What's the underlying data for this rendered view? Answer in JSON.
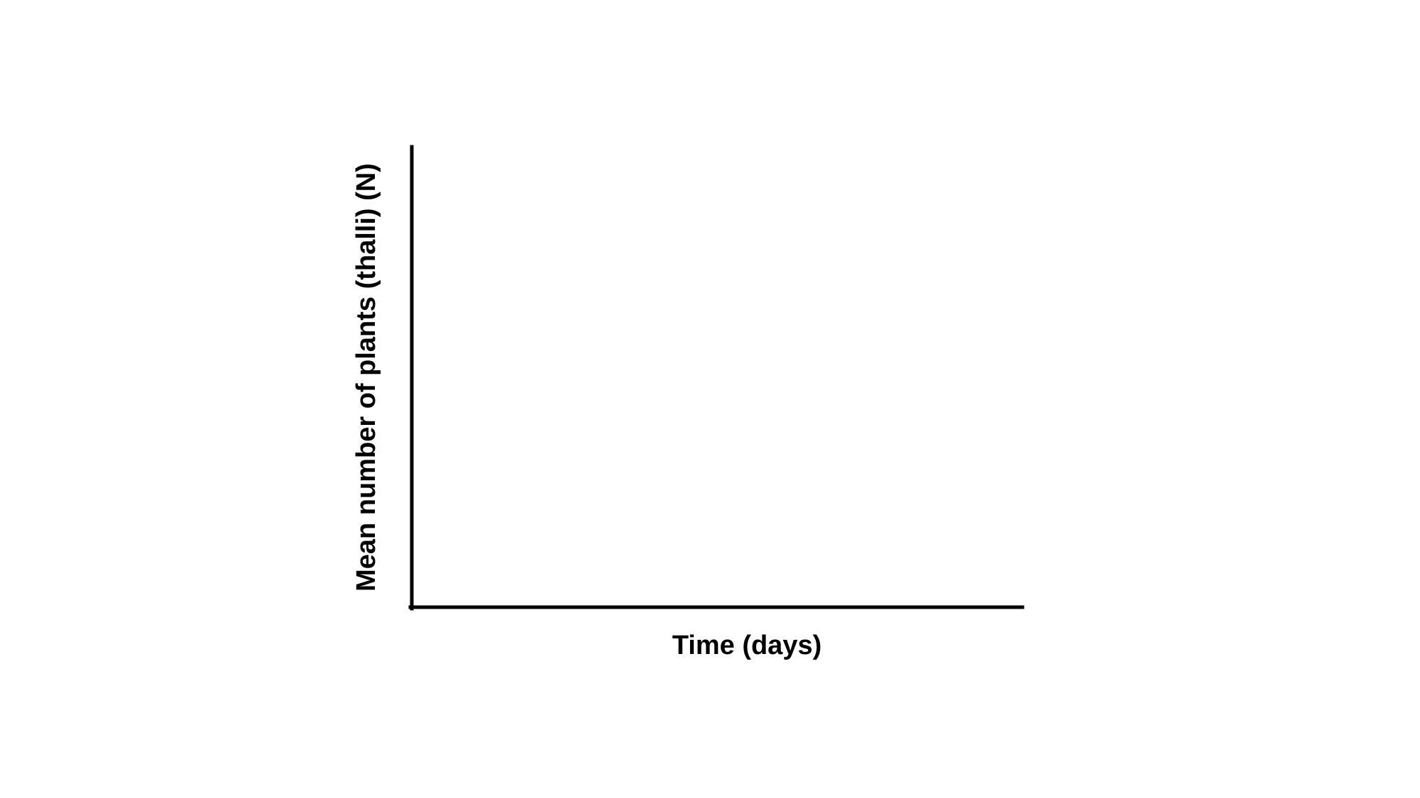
{
  "chart_data": {
    "type": "line",
    "title": "",
    "xlabel": "Time (days)",
    "ylabel": "Mean number of plants (thalli) (N)",
    "series": [],
    "x": [],
    "grid": false,
    "legend": "none"
  },
  "colors": {
    "axis": "#000000",
    "background": "#ffffff"
  }
}
